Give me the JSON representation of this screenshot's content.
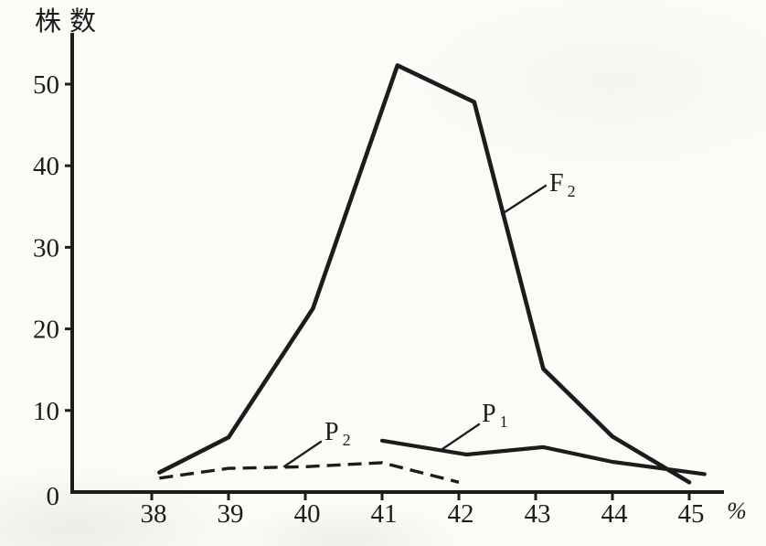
{
  "figure": {
    "background": "#fcfbf8",
    "ink": "#1c1c1c"
  },
  "chart_data": {
    "type": "line",
    "title": "",
    "ylabel": "株数",
    "xlabel": "%",
    "x_ticks": [
      38,
      39,
      40,
      41,
      42,
      43,
      44,
      45
    ],
    "y_ticks": [
      0,
      10,
      20,
      30,
      40,
      50
    ],
    "xlim": [
      37,
      45.5
    ],
    "ylim": [
      0,
      53
    ],
    "grid": false,
    "legend_position": "inline-annotations",
    "series": [
      {
        "name": "F2",
        "label_main": "F",
        "label_sub": "2",
        "line_style": "solid",
        "points": [
          [
            38.1,
            2.4
          ],
          [
            39.0,
            6.7
          ],
          [
            40.1,
            22.5
          ],
          [
            41.2,
            52.3
          ],
          [
            42.2,
            47.8
          ],
          [
            43.1,
            15.1
          ],
          [
            44.0,
            6.8
          ],
          [
            45.0,
            1.2
          ]
        ]
      },
      {
        "name": "P1",
        "label_main": "P",
        "label_sub": "1",
        "line_style": "solid",
        "points": [
          [
            41.0,
            6.3
          ],
          [
            42.1,
            4.6
          ],
          [
            43.1,
            5.5
          ],
          [
            44.0,
            3.7
          ],
          [
            45.2,
            2.2
          ]
        ]
      },
      {
        "name": "P2",
        "label_main": "P",
        "label_sub": "2",
        "line_style": "dashed",
        "points": [
          [
            38.1,
            1.7
          ],
          [
            39.0,
            2.9
          ],
          [
            40.0,
            3.1
          ],
          [
            41.0,
            3.6
          ],
          [
            42.0,
            1.2
          ]
        ]
      }
    ]
  }
}
